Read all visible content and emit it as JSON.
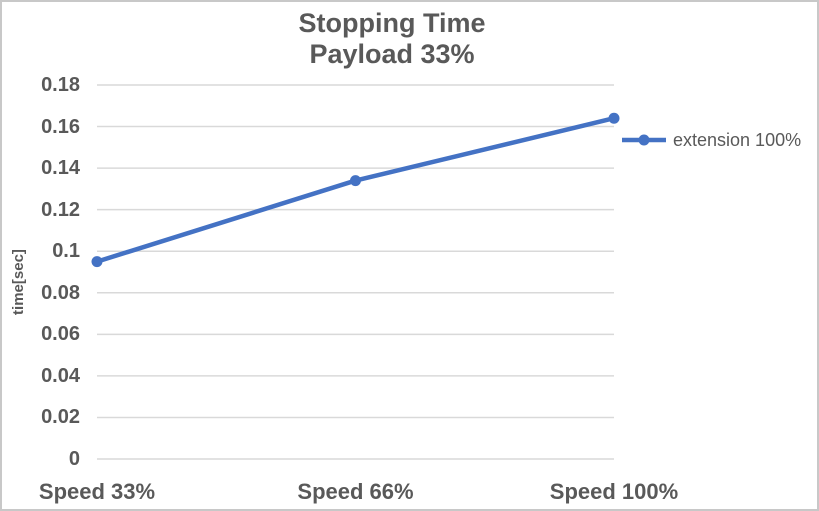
{
  "chart_data": {
    "type": "line",
    "title": "Stopping Time",
    "subtitle": "Payload 33%",
    "categories": [
      "Speed 33%",
      "Speed 66%",
      "Speed 100%"
    ],
    "series": [
      {
        "name": "extension 100%",
        "values": [
          0.095,
          0.134,
          0.164
        ],
        "color": "#4472C4",
        "marker": "circle"
      }
    ],
    "xlabel": "",
    "ylabel": "time[sec]",
    "ylim": [
      0,
      0.18
    ],
    "yticks": [
      0,
      0.02,
      0.04,
      0.06,
      0.08,
      0.1,
      0.12,
      0.14,
      0.16,
      0.18
    ],
    "ytick_labels": [
      "0",
      "0.02",
      "0.04",
      "0.06",
      "0.08",
      "0.1",
      "0.12",
      "0.14",
      "0.16",
      "0.18"
    ],
    "grid": "horizontal",
    "legend_position": "right",
    "category_axis_alignment": "on-ticks"
  },
  "colors": {
    "series_blue": "#4472C4",
    "gridline": "#D9D9D9",
    "axis_line": "#D9D9D9",
    "text": "#595959",
    "border": "#C8C8C8",
    "background": "#FFFFFF"
  }
}
